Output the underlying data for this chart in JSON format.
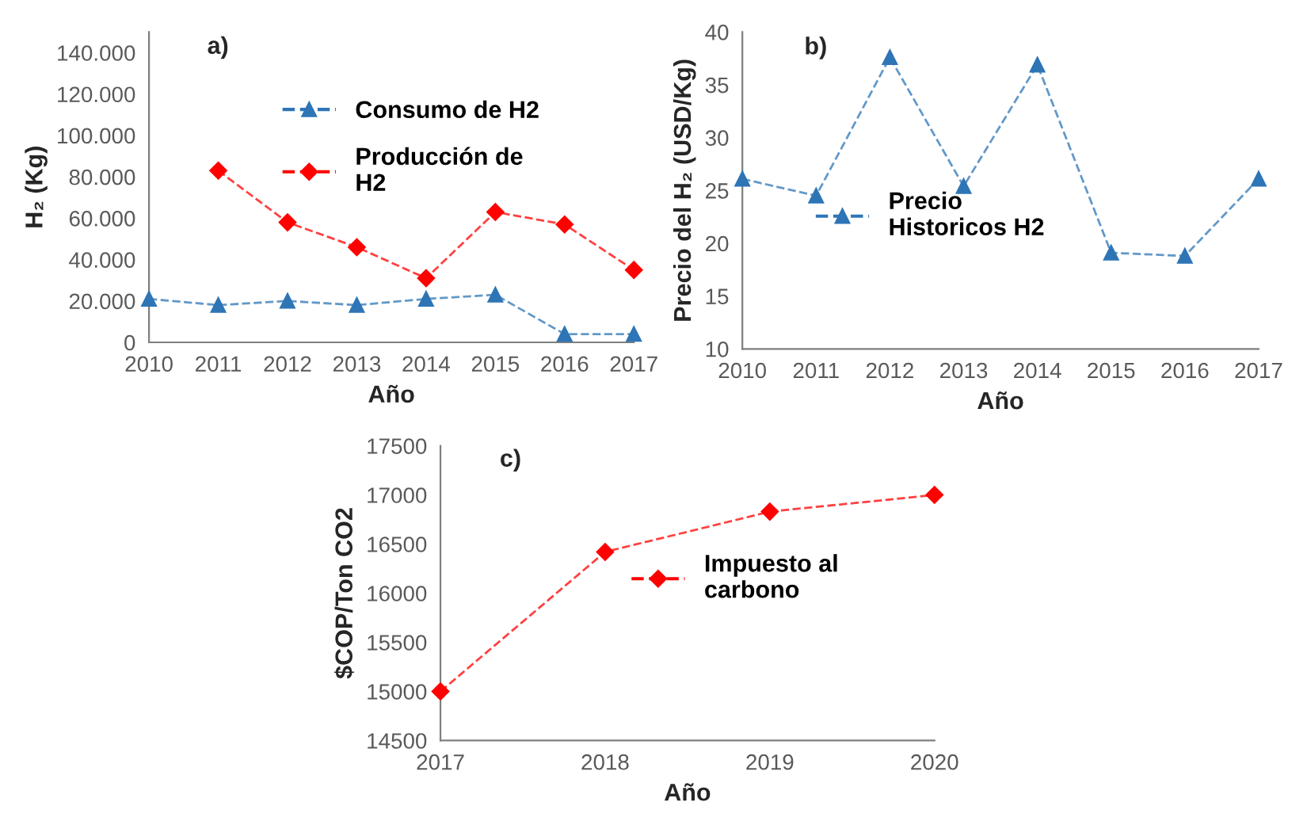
{
  "chart_data": [
    {
      "type": "line",
      "annotations": [
        "a)"
      ],
      "xlabel": "Año",
      "ylabel": "H₂ (Kg)",
      "x": [
        2010,
        2011,
        2012,
        2013,
        2014,
        2015,
        2016,
        2017
      ],
      "series": [
        {
          "name": "Consumo de H2",
          "color": "#2e75b6",
          "marker": "triangle",
          "values": [
            21000,
            18000,
            20000,
            18000,
            21000,
            23000,
            4000,
            4000
          ]
        },
        {
          "name": "Producción de\nH2",
          "color": "#ff0000",
          "marker": "diamond",
          "values": [
            null,
            83000,
            58000,
            46000,
            31000,
            63000,
            57000,
            35000
          ]
        }
      ],
      "xlim": [
        2010,
        2017
      ],
      "xticks": [
        2010,
        2011,
        2012,
        2013,
        2014,
        2015,
        2016,
        2017
      ],
      "ylim": [
        0,
        150000
      ],
      "yticks": [
        0,
        {
          "value": 20000,
          "label": "20.000"
        },
        {
          "value": 40000,
          "label": "40.000"
        },
        {
          "value": 60000,
          "label": "60.000"
        },
        {
          "value": 80000,
          "label": "80.000"
        },
        {
          "value": 100000,
          "label": "100.000"
        },
        {
          "value": 120000,
          "label": "120.000"
        },
        {
          "value": 140000,
          "label": "140.000"
        }
      ],
      "grid": false,
      "legend": "top right",
      "line_style": "dashed"
    },
    {
      "type": "line",
      "annotations": [
        "b)"
      ],
      "xlabel": "Año",
      "ylabel": "Precio del H₂ (USD/Kg)",
      "x": [
        2010,
        2011,
        2012,
        2013,
        2014,
        2015,
        2016,
        2017
      ],
      "series": [
        {
          "name": "Precio\nHistoricos H2",
          "color": "#2e75b6",
          "marker": "triangle",
          "values": [
            26.1,
            24.5,
            37.6,
            25.4,
            36.9,
            19.1,
            18.8,
            26.1
          ]
        }
      ],
      "xlim": [
        2010,
        2017
      ],
      "xticks": [
        2010,
        2011,
        2012,
        2013,
        2014,
        2015,
        2016,
        2017
      ],
      "ylim": [
        10,
        40
      ],
      "yticks": [
        10,
        15,
        20,
        25,
        30,
        35,
        40
      ],
      "grid": false,
      "legend": "center left",
      "line_style": "dashed"
    },
    {
      "type": "line",
      "annotations": [
        "c)"
      ],
      "xlabel": "Año",
      "ylabel": "$COP/Ton CO2",
      "x": [
        2017,
        2018,
        2019,
        2020
      ],
      "series": [
        {
          "name": "Impuesto al\ncarbono",
          "color": "#ff0000",
          "marker": "diamond",
          "values": [
            15000,
            16420,
            16830,
            17000
          ]
        }
      ],
      "xlim": [
        2017,
        2020
      ],
      "xticks": [
        2017,
        2018,
        2019,
        2020
      ],
      "ylim": [
        14500,
        17500
      ],
      "yticks": [
        14500,
        15000,
        15500,
        16000,
        16500,
        17000,
        17500
      ],
      "grid": false,
      "legend": "center right",
      "line_style": "dashed"
    }
  ]
}
